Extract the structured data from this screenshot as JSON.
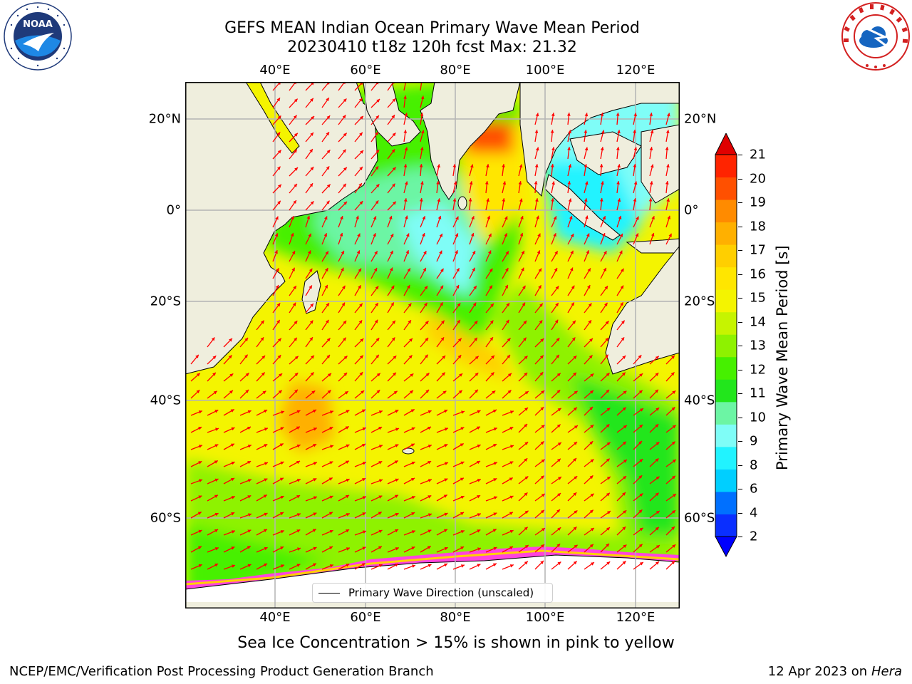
{
  "header": {
    "title_line1": "GEFS MEAN Indian Ocean Primary Wave Mean Period",
    "title_line2": "20230410 t18z 120h fcst   Max: 21.32"
  },
  "logos": {
    "left": {
      "text": "NOAA",
      "ring_text": "NATIONAL OCEANIC AND ATMOSPHERIC ADMINISTRATION · U.S. DEPARTMENT OF COMMERCE"
    },
    "right": {
      "ring_text": "NATIONAL WEATHER SERVICE"
    }
  },
  "map": {
    "lon_ticks": [
      "40°E",
      "60°E",
      "80°E",
      "100°E",
      "120°E"
    ],
    "lat_ticks": [
      "20°N",
      "0°",
      "20°S",
      "40°S",
      "60°S"
    ],
    "legend_label": "Primary Wave Direction (unscaled)",
    "colors": {
      "ocean_default": "#f4f400",
      "land": "#efeedd",
      "arrow": "#ff0000"
    }
  },
  "colorbar": {
    "title": "Primary Wave Mean Period [s]",
    "levels": [
      "2",
      "4",
      "6",
      "8",
      "9",
      "10",
      "11",
      "12",
      "13",
      "14",
      "15",
      "16",
      "17",
      "18",
      "19",
      "20",
      "21"
    ],
    "colors": [
      "#0a2fff",
      "#0070ff",
      "#00cfff",
      "#21f3ff",
      "#7ffdf7",
      "#6cf5a4",
      "#22e61c",
      "#46f000",
      "#8ef200",
      "#c6f400",
      "#f4f400",
      "#ffe600",
      "#ffcf00",
      "#ffb000",
      "#ff8b00",
      "#ff5000",
      "#ff2400"
    ],
    "under_color": "#0000ff",
    "over_color": "#e00000"
  },
  "notes": {
    "sea_ice": "Sea Ice Concentration > 15% is shown in pink to yellow"
  },
  "footer": {
    "left": "NCEP/EMC/Verification Post Processing Product Generation Branch",
    "right_date": "12 Apr 2023 on ",
    "right_machine": "Hera"
  }
}
